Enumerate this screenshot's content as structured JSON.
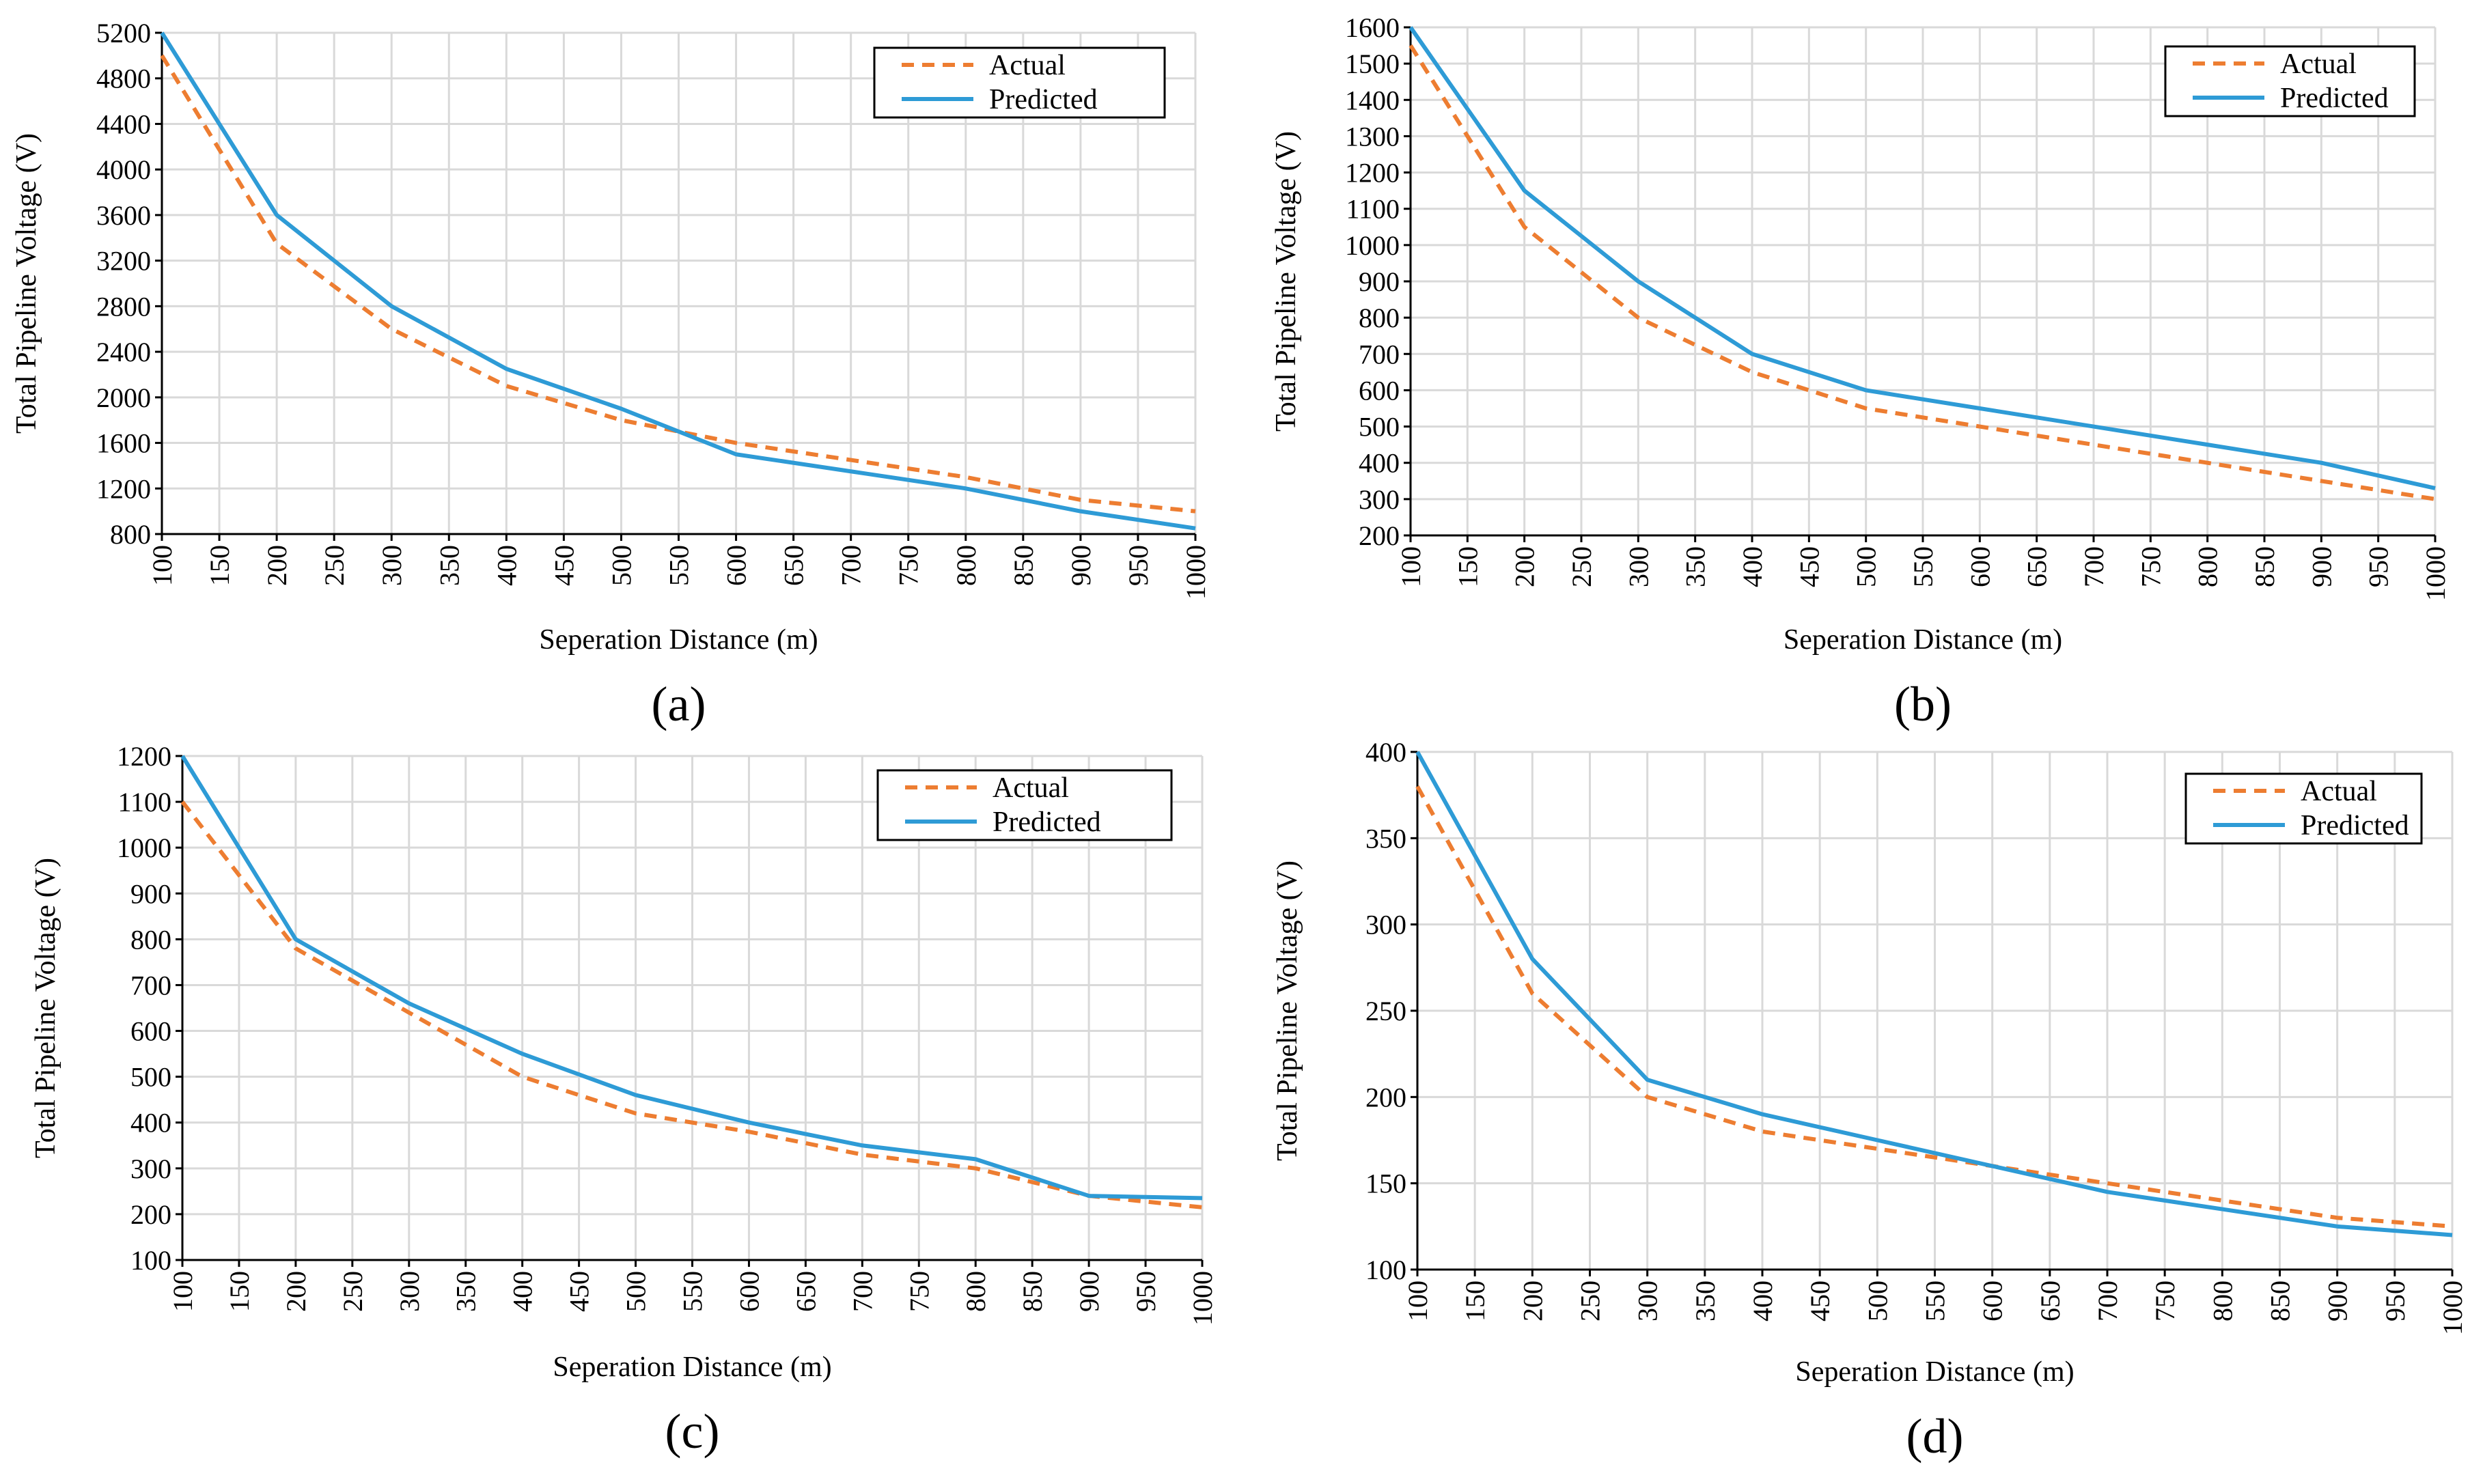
{
  "colors": {
    "actual": "#ed7d31",
    "predicted": "#2e9bd6",
    "grid": "#d9d9d9",
    "axis": "#000000"
  },
  "chart_data": [
    {
      "type": "line",
      "panel_label": "(a)",
      "xlabel": "Seperation Distance (m)",
      "ylabel": "Total Pipeline Voltage (V)",
      "x": [
        100,
        200,
        300,
        400,
        500,
        600,
        700,
        800,
        900,
        1000
      ],
      "xlim": [
        100,
        1000
      ],
      "xticks": [
        100,
        150,
        200,
        250,
        300,
        350,
        400,
        450,
        500,
        550,
        600,
        650,
        700,
        750,
        800,
        850,
        900,
        950,
        1000
      ],
      "ylim": [
        800,
        5200
      ],
      "yticks": [
        800,
        1200,
        1600,
        2000,
        2400,
        2800,
        3200,
        3600,
        4000,
        4400,
        4800,
        5200
      ],
      "legend_position": "top-right",
      "grid": true,
      "series": [
        {
          "name": "Actual",
          "style": "dashed",
          "values": [
            5000,
            3350,
            2600,
            2100,
            1800,
            1600,
            1450,
            1300,
            1100,
            1000
          ]
        },
        {
          "name": "Predicted",
          "style": "solid",
          "values": [
            5200,
            3600,
            2800,
            2250,
            1900,
            1500,
            1350,
            1200,
            1000,
            850
          ]
        }
      ]
    },
    {
      "type": "line",
      "panel_label": "(b)",
      "xlabel": "Seperation Distance (m)",
      "ylabel": "Total Pipeline Voltage (V)",
      "x": [
        100,
        200,
        300,
        400,
        500,
        600,
        700,
        800,
        900,
        1000
      ],
      "xlim": [
        100,
        1000
      ],
      "xticks": [
        100,
        150,
        200,
        250,
        300,
        350,
        400,
        450,
        500,
        550,
        600,
        650,
        700,
        750,
        800,
        850,
        900,
        950,
        1000
      ],
      "ylim": [
        200,
        1600
      ],
      "yticks": [
        200,
        300,
        400,
        500,
        600,
        700,
        800,
        900,
        1000,
        1100,
        1200,
        1300,
        1400,
        1500,
        1600
      ],
      "legend_position": "top-right",
      "grid": true,
      "series": [
        {
          "name": "Actual",
          "style": "dashed",
          "values": [
            1550,
            1050,
            800,
            650,
            550,
            500,
            450,
            400,
            350,
            300
          ]
        },
        {
          "name": "Predicted",
          "style": "solid",
          "values": [
            1600,
            1150,
            900,
            700,
            600,
            550,
            500,
            450,
            400,
            330
          ]
        }
      ]
    },
    {
      "type": "line",
      "panel_label": "(c)",
      "xlabel": "Seperation Distance (m)",
      "ylabel": "Total Pipeline Voltage (V)",
      "x": [
        100,
        200,
        300,
        400,
        500,
        600,
        700,
        800,
        900,
        1000
      ],
      "xlim": [
        100,
        1000
      ],
      "xticks": [
        100,
        150,
        200,
        250,
        300,
        350,
        400,
        450,
        500,
        550,
        600,
        650,
        700,
        750,
        800,
        850,
        900,
        950,
        1000
      ],
      "ylim": [
        100,
        1200
      ],
      "yticks": [
        100,
        200,
        300,
        400,
        500,
        600,
        700,
        800,
        900,
        1000,
        1100,
        1200
      ],
      "legend_position": "top-right",
      "grid": true,
      "series": [
        {
          "name": "Actual",
          "style": "dashed",
          "values": [
            1100,
            780,
            640,
            500,
            420,
            380,
            330,
            300,
            240,
            215
          ]
        },
        {
          "name": "Predicted",
          "style": "solid",
          "values": [
            1200,
            800,
            660,
            550,
            460,
            400,
            350,
            320,
            240,
            235
          ]
        }
      ]
    },
    {
      "type": "line",
      "panel_label": "(d)",
      "xlabel": "Seperation Distance (m)",
      "ylabel": "Total Pipeline Voltage (V)",
      "x": [
        100,
        200,
        300,
        400,
        500,
        600,
        700,
        800,
        900,
        1000
      ],
      "xlim": [
        100,
        1000
      ],
      "xticks": [
        100,
        150,
        200,
        250,
        300,
        350,
        400,
        450,
        500,
        550,
        600,
        650,
        700,
        750,
        800,
        850,
        900,
        950,
        1000
      ],
      "ylim": [
        100,
        400
      ],
      "yticks": [
        100,
        150,
        200,
        250,
        300,
        350,
        400
      ],
      "legend_position": "top-right",
      "grid": true,
      "series": [
        {
          "name": "Actual",
          "style": "dashed",
          "values": [
            380,
            260,
            200,
            180,
            170,
            160,
            150,
            140,
            130,
            125
          ]
        },
        {
          "name": "Predicted",
          "style": "solid",
          "values": [
            400,
            280,
            210,
            190,
            175,
            160,
            145,
            135,
            125,
            120
          ]
        }
      ]
    }
  ]
}
